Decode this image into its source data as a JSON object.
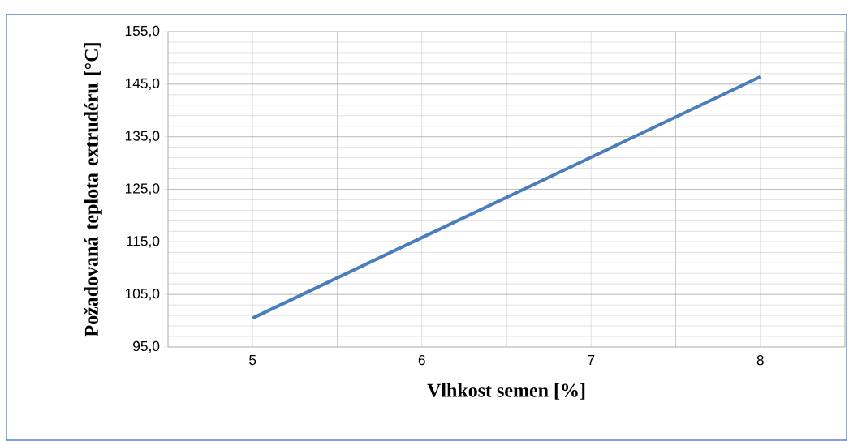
{
  "chart_data": {
    "type": "line",
    "xlabel": "Vlhkost semen [%]",
    "ylabel": "Požadovaná teplota extrudéru [°C]",
    "categories": [
      "5",
      "6",
      "7",
      "8"
    ],
    "series": [
      {
        "color": "#4a7ebb",
        "values": [
          100.5,
          115.8,
          131.1,
          146.4
        ]
      }
    ],
    "ylim": [
      95,
      155
    ],
    "yticks": [
      {
        "value": 95,
        "label": "95,0"
      },
      {
        "value": 105,
        "label": "105,0"
      },
      {
        "value": 115,
        "label": "115,0"
      },
      {
        "value": 125,
        "label": "125,0"
      },
      {
        "value": 135,
        "label": "135,0"
      },
      {
        "value": 145,
        "label": "145,0"
      },
      {
        "value": 155,
        "label": "155,0"
      }
    ],
    "grid": true,
    "marker": "none",
    "line_style": "solid"
  }
}
